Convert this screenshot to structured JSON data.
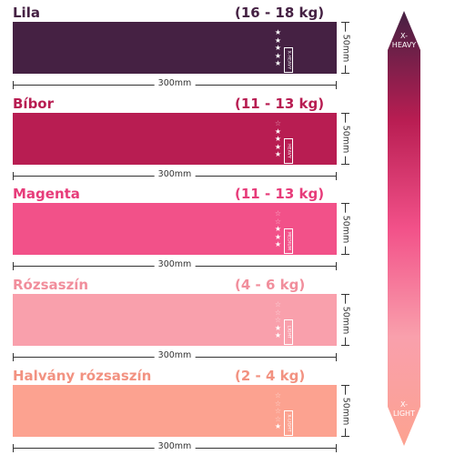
{
  "bands": [
    {
      "name": "Lila",
      "weight": "(16 - 18 kg)",
      "level": "X-HEAVY",
      "stars": 5,
      "color": "#452143",
      "text_color": "#452143",
      "width_label": "300mm",
      "height_label": "50mm"
    },
    {
      "name": "Bíbor",
      "weight": "(11 - 13 kg)",
      "level": "HEAVY",
      "stars": 4,
      "color": "#b81d52",
      "text_color": "#b81d52",
      "width_label": "300mm",
      "height_label": "50mm"
    },
    {
      "name": "Magenta",
      "weight": "(11 - 13 kg)",
      "level": "MEDIUM",
      "stars": 3,
      "color": "#f25189",
      "text_color": "#e73c7a",
      "width_label": "300mm",
      "height_label": "50mm"
    },
    {
      "name": "Rózsaszín",
      "weight": "(4 - 6 kg)",
      "level": "LIGHT",
      "stars": 2,
      "color": "#f9a0ac",
      "text_color": "#f18e9c",
      "width_label": "300mm",
      "height_label": "50mm"
    },
    {
      "name": "Halvány rózsaszín",
      "weight": "(2 - 4 kg)",
      "level": "X-LIGHT",
      "stars": 1,
      "color": "#fca290",
      "text_color": "#f29281",
      "width_label": "300mm",
      "height_label": "50mm"
    }
  ],
  "scale": {
    "top_label_line1": "X-",
    "top_label_line2": "HEAVY",
    "bottom_label_line1": "X-",
    "bottom_label_line2": "LIGHT",
    "gradient_colors": [
      "#452143",
      "#b81d52",
      "#f25189",
      "#f9a0ac",
      "#fca290"
    ]
  },
  "max_stars": 5
}
